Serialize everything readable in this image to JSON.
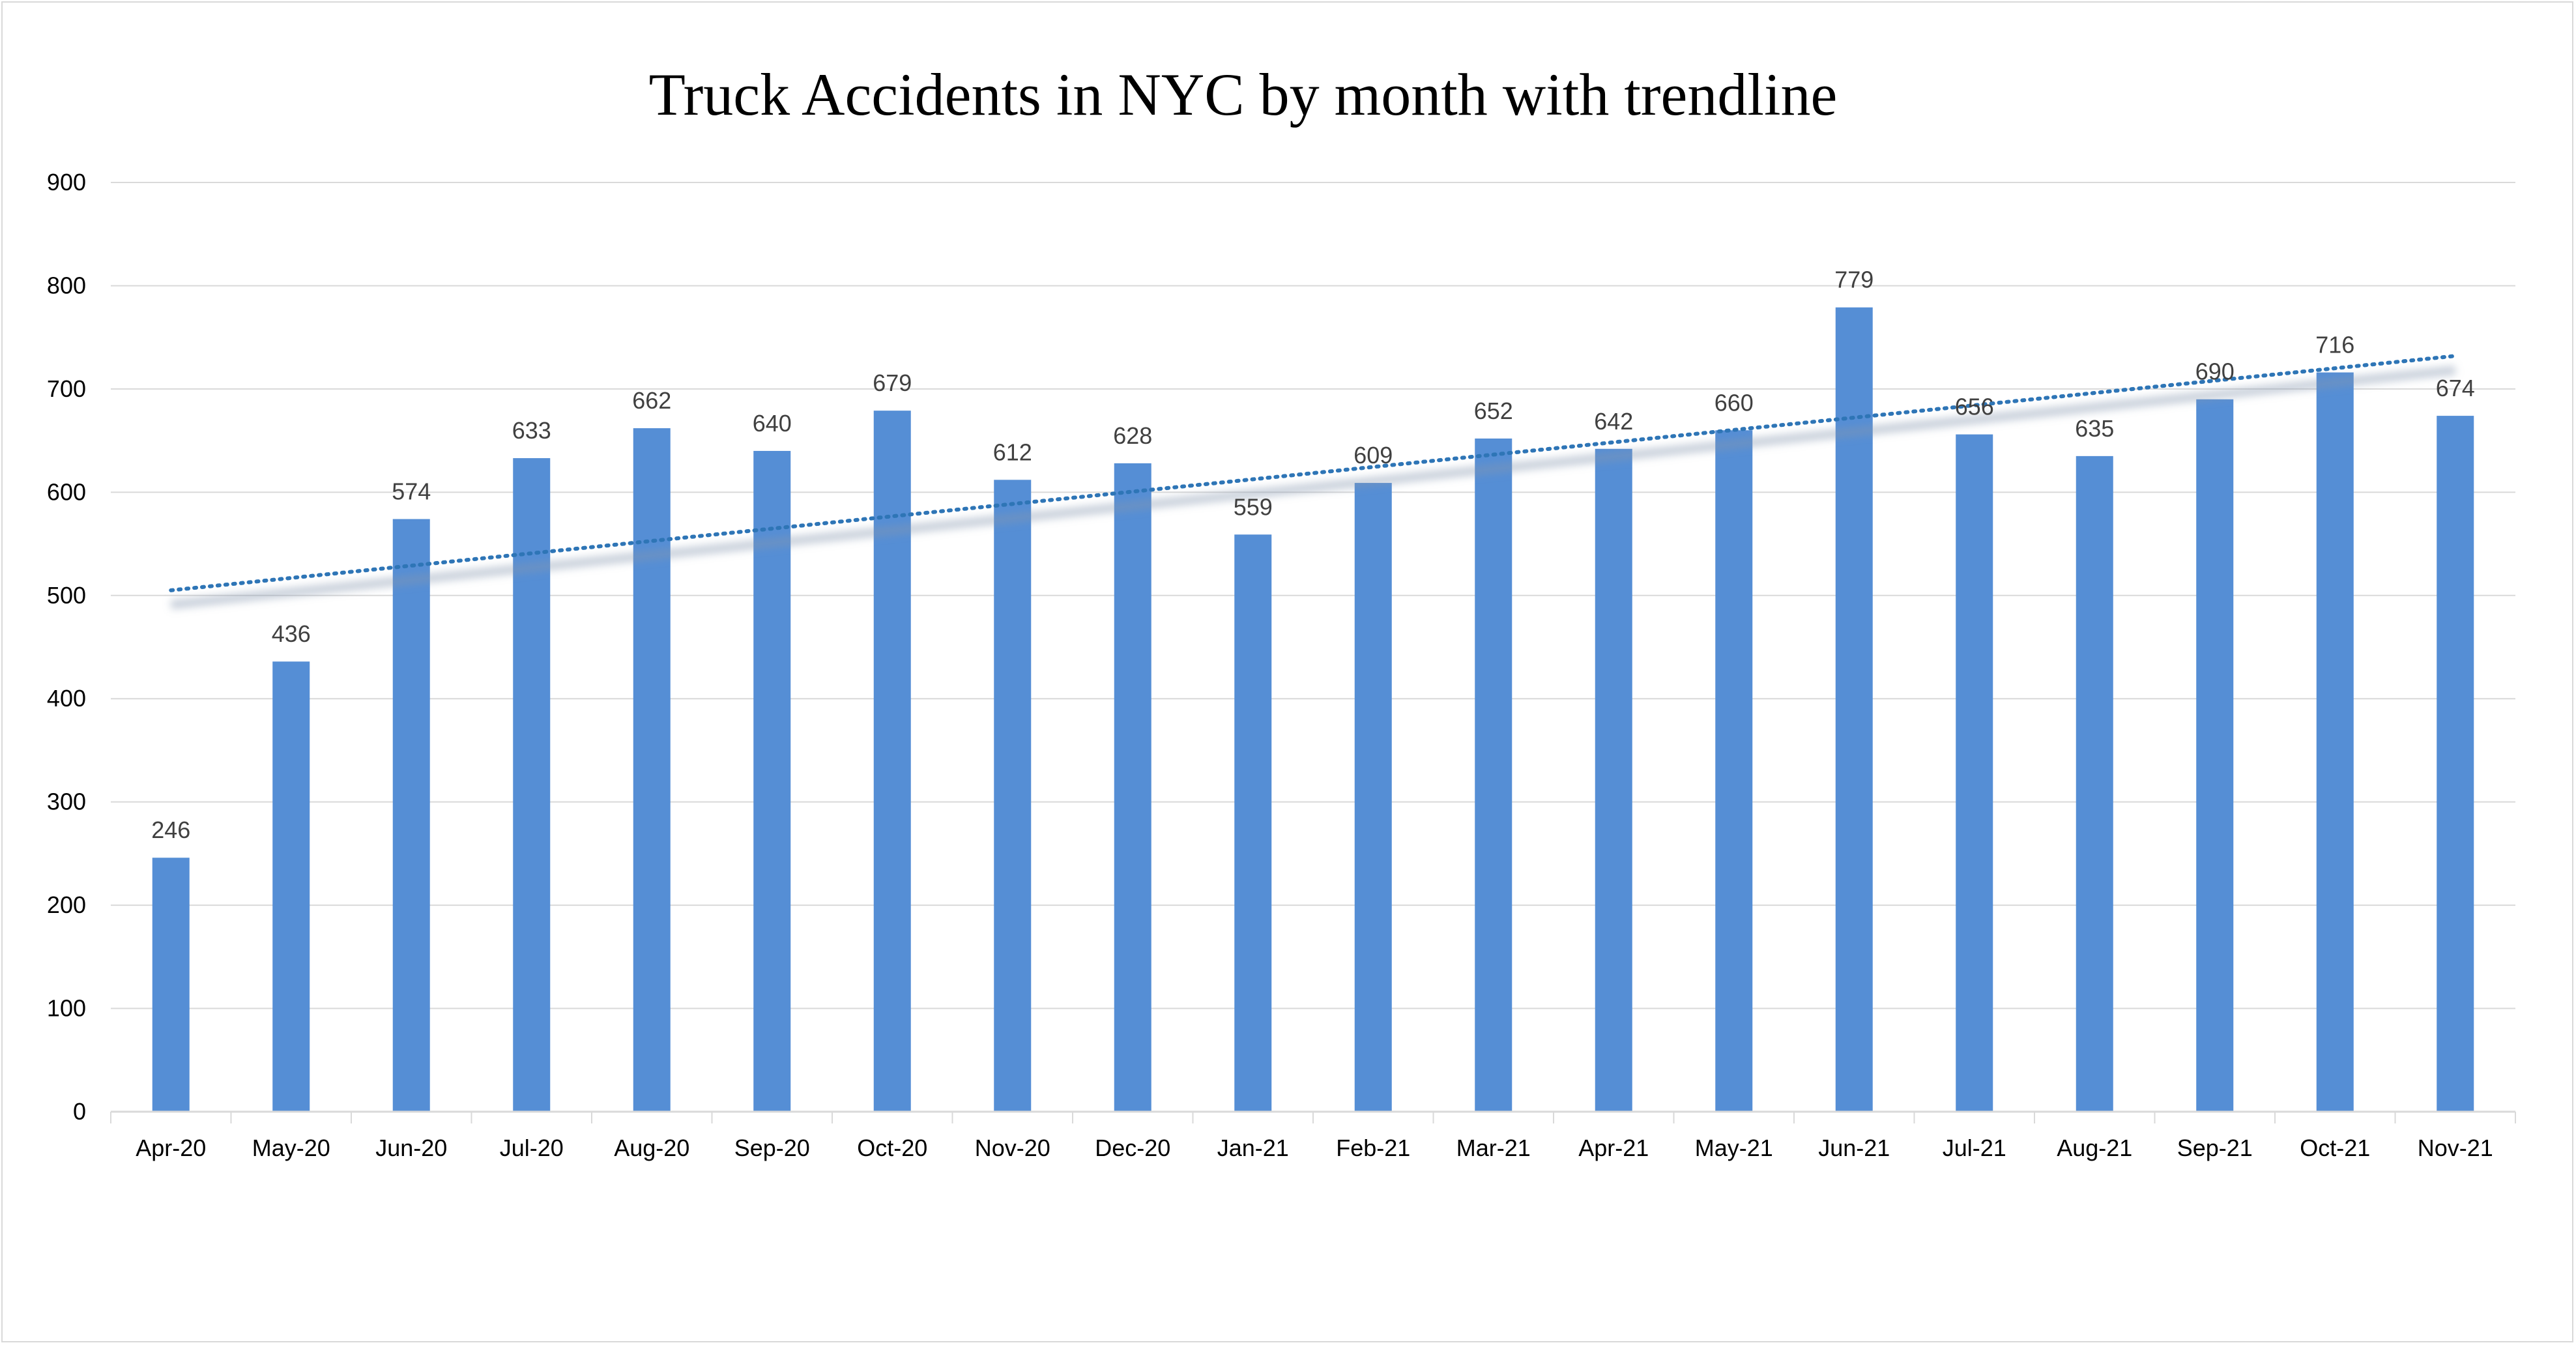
{
  "chart_data": {
    "type": "bar",
    "title": "Truck Accidents in NYC by month with trendline",
    "xlabel": "",
    "ylabel": "",
    "categories": [
      "Apr-20",
      "May-20",
      "Jun-20",
      "Jul-20",
      "Aug-20",
      "Sep-20",
      "Oct-20",
      "Nov-20",
      "Dec-20",
      "Jan-21",
      "Feb-21",
      "Mar-21",
      "Apr-21",
      "May-21",
      "Jun-21",
      "Jul-21",
      "Aug-21",
      "Sep-21",
      "Oct-21",
      "Nov-21"
    ],
    "values": [
      246,
      436,
      574,
      633,
      662,
      640,
      679,
      612,
      628,
      559,
      609,
      652,
      642,
      660,
      779,
      656,
      635,
      690,
      716,
      674
    ],
    "ylim": [
      0,
      900
    ],
    "yticks": [
      0,
      100,
      200,
      300,
      400,
      500,
      600,
      700,
      800,
      900
    ],
    "grid": true,
    "data_labels": true,
    "trendline": {
      "type": "linear",
      "style": "dotted",
      "start": 505,
      "end": 732
    },
    "colors": {
      "bar": "#558ed5",
      "trendline": "#2e75b6",
      "gridline": "#d9d9d9"
    }
  }
}
